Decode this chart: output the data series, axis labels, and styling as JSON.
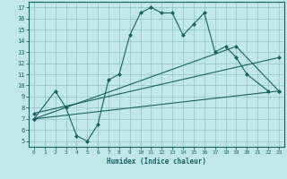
{
  "xlabel": "Humidex (Indice chaleur)",
  "ylabel": "",
  "xlim": [
    -0.5,
    23.5
  ],
  "ylim": [
    4.5,
    17.5
  ],
  "xticks": [
    0,
    1,
    2,
    3,
    4,
    5,
    6,
    7,
    8,
    9,
    10,
    11,
    12,
    13,
    14,
    15,
    16,
    17,
    18,
    19,
    20,
    21,
    22,
    23
  ],
  "yticks": [
    5,
    6,
    7,
    8,
    9,
    10,
    11,
    12,
    13,
    14,
    15,
    16,
    17
  ],
  "bg_color": "#c0e8e8",
  "grid_color": "#98c8c8",
  "line_color": "#1a6060",
  "line1_x": [
    0,
    2,
    3,
    4,
    5,
    6,
    7,
    8,
    9,
    10,
    11,
    12,
    13,
    14,
    15,
    16,
    17,
    18,
    19,
    20,
    22
  ],
  "line1_y": [
    7.0,
    9.5,
    8.0,
    5.5,
    5.0,
    6.5,
    10.5,
    11.0,
    14.5,
    16.5,
    17.0,
    16.5,
    16.5,
    14.5,
    15.5,
    16.5,
    13.0,
    13.5,
    12.5,
    11.0,
    9.5
  ],
  "line2_x": [
    0,
    23
  ],
  "line2_y": [
    7.0,
    9.5
  ],
  "line3_x": [
    0,
    23
  ],
  "line3_y": [
    7.5,
    12.5
  ],
  "line4_x": [
    0,
    19,
    23
  ],
  "line4_y": [
    7.0,
    13.5,
    9.5
  ]
}
